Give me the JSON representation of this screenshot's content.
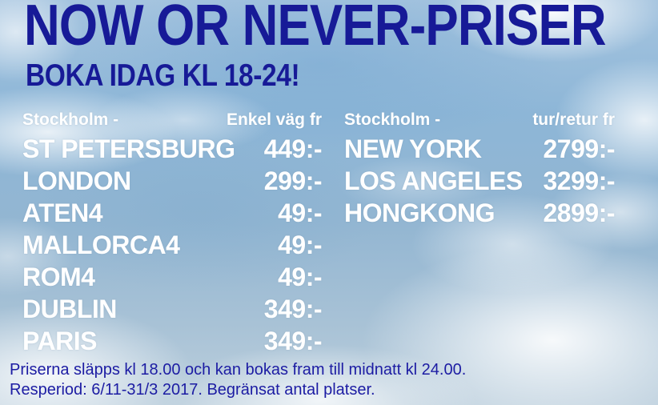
{
  "title": "NOW OR NEVER-PRISER",
  "subtitle": "BOKA IDAG KL 18-24!",
  "columns": [
    {
      "origin_label": "Stockholm -",
      "fare_type_label": "Enkel väg fr",
      "rows": [
        {
          "destination": "ST PETERSBURG",
          "price": "449:-"
        },
        {
          "destination": "LONDON",
          "price": "299:-"
        },
        {
          "destination": "ATEN4",
          "price": "49:-"
        },
        {
          "destination": "MALLORCA4",
          "price": "49:-"
        },
        {
          "destination": "ROM4",
          "price": "49:-"
        },
        {
          "destination": "DUBLIN",
          "price": "349:-"
        },
        {
          "destination": "PARIS",
          "price": "349:-"
        }
      ]
    },
    {
      "origin_label": "Stockholm -",
      "fare_type_label": "tur/retur fr",
      "rows": [
        {
          "destination": "NEW YORK",
          "price": "2799:-"
        },
        {
          "destination": "LOS ANGELES",
          "price": "3299:-"
        },
        {
          "destination": "HONGKONG",
          "price": "2899:-"
        }
      ]
    }
  ],
  "footer": {
    "line1": "Priserna släpps kl 18.00 och kan bokas fram till midnatt kl 24.00.",
    "line2": "Resperiod: 6/11-31/3 2017. Begränsat antal platser."
  },
  "colors": {
    "headline_blue": "#171a97",
    "footer_blue": "#1c1ca3",
    "list_text": "#ffffff"
  }
}
